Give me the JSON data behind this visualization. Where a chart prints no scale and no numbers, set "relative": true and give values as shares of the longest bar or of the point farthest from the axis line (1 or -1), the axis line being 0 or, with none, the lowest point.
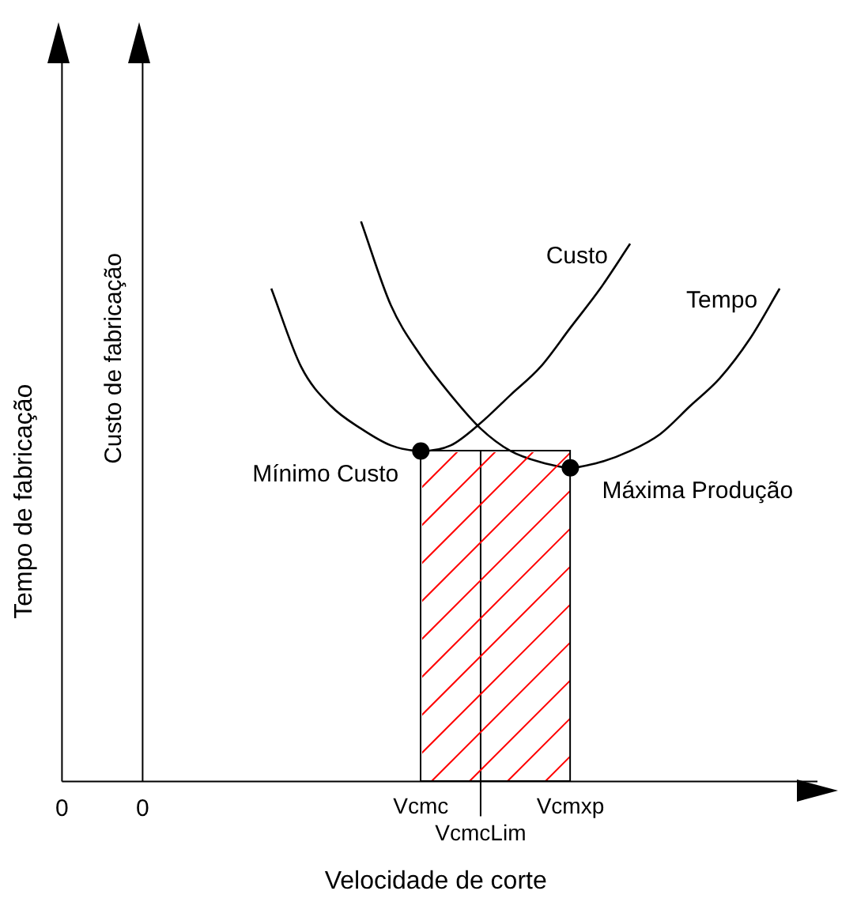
{
  "chart_data": {
    "type": "line",
    "relative": true,
    "xlabel": "Velocidade de corte",
    "ylabel": "Tempo de fabricação",
    "y2label": "Custo de fabricação",
    "categories": [
      null,
      null,
      null,
      null,
      null,
      null,
      null,
      null,
      null,
      null,
      null,
      null,
      "Vcmc",
      null,
      "VcmcLim",
      null,
      null,
      "Vcmxp",
      null,
      null,
      null,
      null,
      null,
      null,
      null,
      null
    ],
    "series": [
      {
        "name": "Custo",
        "color": "#000000",
        "marker": "none",
        "line_style": "solid",
        "values": [
          null,
          null,
          null,
          null,
          null,
          null,
          null,
          0.88,
          0.74,
          0.67,
          0.63,
          0.6,
          0.59,
          0.6,
          0.64,
          0.69,
          0.74,
          0.81,
          0.88,
          0.96,
          null,
          null,
          null,
          null,
          null,
          null
        ]
      },
      {
        "name": "Tempo",
        "color": "#000000",
        "marker": "none",
        "line_style": "solid",
        "values": [
          null,
          null,
          null,
          null,
          null,
          null,
          null,
          null,
          null,
          null,
          1,
          0.85,
          0.76,
          0.69,
          0.63,
          0.59,
          0.57,
          0.56,
          0.57,
          0.59,
          0.62,
          0.67,
          0.72,
          0.79,
          0.88,
          null
        ]
      },
      {
        "type": "scatter",
        "color": "#000000",
        "marker": "circle",
        "x": [
          "Vcmc",
          "Vcmxp"
        ],
        "values": [
          0.59,
          0.56
        ]
      }
    ],
    "ref_lines": [
      {
        "axis": "x",
        "value": "VcmcLim"
      }
    ],
    "annotations": [
      "0",
      "0",
      {
        "text": "Mínimo Custo",
        "x": "Vcmc",
        "y": 0.59
      },
      {
        "text": "Máxima Produção",
        "x": "Vcmxp",
        "y": 0.56
      }
    ],
    "legend": false,
    "grid": false
  }
}
